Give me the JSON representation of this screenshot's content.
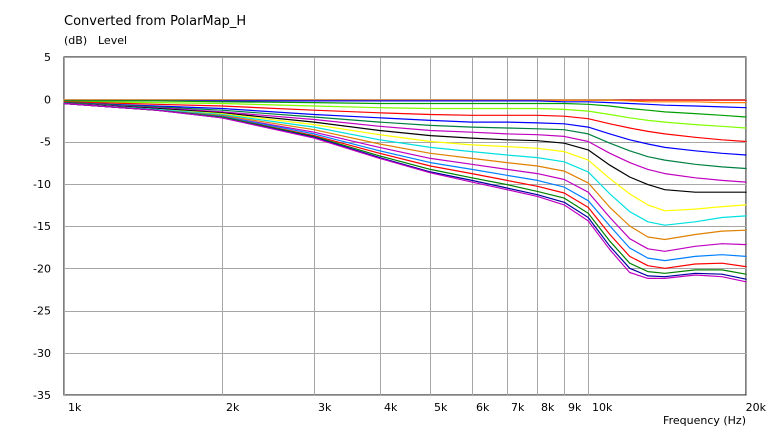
{
  "chart_data": {
    "type": "line",
    "title": "Converted from PolarMap_H",
    "ylabel_unit": "(dB)",
    "ylabel": "Level",
    "xlabel": "Frequency (Hz)",
    "x_scale": "log",
    "xlim": [
      1000,
      20000
    ],
    "ylim": [
      -35,
      5
    ],
    "x_ticks": [
      {
        "value": 1000,
        "label": "1k"
      },
      {
        "value": 2000,
        "label": "2k"
      },
      {
        "value": 3000,
        "label": "3k"
      },
      {
        "value": 4000,
        "label": "4k"
      },
      {
        "value": 5000,
        "label": "5k"
      },
      {
        "value": 6000,
        "label": "6k"
      },
      {
        "value": 7000,
        "label": "7k"
      },
      {
        "value": 8000,
        "label": "8k"
      },
      {
        "value": 9000,
        "label": "9k"
      },
      {
        "value": 10000,
        "label": "10k"
      },
      {
        "value": 20000,
        "label": "20k"
      }
    ],
    "y_ticks": [
      5,
      0,
      -5,
      -10,
      -15,
      -20,
      -25,
      -30,
      -35
    ],
    "grid": true,
    "x": [
      1000,
      1500,
      2000,
      3000,
      4000,
      5000,
      6000,
      7000,
      8000,
      9000,
      10000,
      11000,
      12000,
      13000,
      14000,
      16000,
      18000,
      20000
    ],
    "series": [
      {
        "color": "#ff0000",
        "values": [
          -0.1,
          -0.1,
          -0.1,
          -0.1,
          -0.1,
          -0.1,
          -0.1,
          -0.1,
          -0.1,
          -0.1,
          -0.1,
          -0.1,
          -0.1,
          -0.1,
          -0.1,
          -0.1,
          -0.1,
          -0.1
        ]
      },
      {
        "color": "#ff8000",
        "values": [
          -0.1,
          -0.1,
          -0.1,
          -0.1,
          -0.1,
          -0.1,
          -0.1,
          -0.1,
          -0.1,
          -0.1,
          -0.1,
          -0.1,
          -0.2,
          -0.3,
          -0.3,
          -0.3,
          -0.4,
          -0.4
        ]
      },
      {
        "color": "#0000ff",
        "values": [
          -0.2,
          -0.2,
          -0.2,
          -0.2,
          -0.2,
          -0.2,
          -0.2,
          -0.2,
          -0.2,
          -0.3,
          -0.3,
          -0.4,
          -0.5,
          -0.6,
          -0.7,
          -0.8,
          -0.9,
          -1.0
        ]
      },
      {
        "color": "#00a000",
        "values": [
          -0.2,
          -0.2,
          -0.3,
          -0.4,
          -0.5,
          -0.5,
          -0.5,
          -0.5,
          -0.5,
          -0.5,
          -0.6,
          -0.8,
          -1.1,
          -1.3,
          -1.5,
          -1.7,
          -1.9,
          -2.1
        ]
      },
      {
        "color": "#80ff00",
        "values": [
          -0.3,
          -0.4,
          -0.5,
          -0.8,
          -1.0,
          -1.1,
          -1.1,
          -1.1,
          -1.1,
          -1.2,
          -1.4,
          -1.8,
          -2.2,
          -2.5,
          -2.7,
          -3.0,
          -3.2,
          -3.4
        ]
      },
      {
        "color": "#ff0000",
        "values": [
          -0.3,
          -0.6,
          -0.8,
          -1.3,
          -1.6,
          -1.8,
          -1.9,
          -1.9,
          -1.9,
          -2.0,
          -2.3,
          -2.9,
          -3.4,
          -3.8,
          -4.1,
          -4.5,
          -4.8,
          -5.0
        ]
      },
      {
        "color": "#0000ff",
        "values": [
          -0.4,
          -0.8,
          -1.1,
          -1.8,
          -2.2,
          -2.5,
          -2.7,
          -2.7,
          -2.8,
          -2.9,
          -3.3,
          -4.1,
          -4.8,
          -5.3,
          -5.7,
          -6.1,
          -6.4,
          -6.6
        ]
      },
      {
        "color": "#008040",
        "values": [
          -0.4,
          -0.9,
          -1.3,
          -2.1,
          -2.7,
          -3.1,
          -3.3,
          -3.4,
          -3.5,
          -3.6,
          -4.1,
          -5.2,
          -6.1,
          -6.8,
          -7.2,
          -7.7,
          -8.0,
          -8.2
        ]
      },
      {
        "color": "#c000c0",
        "values": [
          -0.5,
          -1.0,
          -1.5,
          -2.4,
          -3.2,
          -3.7,
          -3.9,
          -4.1,
          -4.2,
          -4.4,
          -5.0,
          -6.4,
          -7.5,
          -8.3,
          -8.8,
          -9.3,
          -9.6,
          -9.8
        ]
      },
      {
        "color": "#000000",
        "values": [
          -0.5,
          -1.1,
          -1.6,
          -2.7,
          -3.7,
          -4.3,
          -4.6,
          -4.8,
          -4.9,
          -5.2,
          -6.0,
          -7.8,
          -9.2,
          -10.1,
          -10.7,
          -11.0,
          -11.0,
          -11.0
        ]
      },
      {
        "color": "#ffff00",
        "values": [
          -0.5,
          -1.2,
          -1.7,
          -3.0,
          -4.2,
          -5.0,
          -5.4,
          -5.6,
          -5.8,
          -6.2,
          -7.2,
          -9.4,
          -11.2,
          -12.5,
          -13.2,
          -13.0,
          -12.7,
          -12.5
        ]
      },
      {
        "color": "#00e0e0",
        "values": [
          -0.5,
          -1.2,
          -1.8,
          -3.3,
          -4.8,
          -5.7,
          -6.2,
          -6.6,
          -6.9,
          -7.4,
          -8.6,
          -11.2,
          -13.3,
          -14.5,
          -14.9,
          -14.5,
          -14.0,
          -13.8
        ]
      },
      {
        "color": "#e08000",
        "values": [
          -0.5,
          -1.3,
          -1.9,
          -3.6,
          -5.3,
          -6.4,
          -7.0,
          -7.5,
          -7.9,
          -8.5,
          -9.9,
          -12.8,
          -15.0,
          -16.3,
          -16.6,
          -16.0,
          -15.6,
          -15.5
        ]
      },
      {
        "color": "#c000c0",
        "values": [
          -0.5,
          -1.3,
          -2.0,
          -3.9,
          -5.7,
          -7.0,
          -7.7,
          -8.3,
          -8.8,
          -9.5,
          -11.0,
          -14.0,
          -16.5,
          -17.7,
          -18.0,
          -17.4,
          -17.1,
          -17.2
        ]
      },
      {
        "color": "#0080ff",
        "values": [
          -0.5,
          -1.3,
          -2.0,
          -4.1,
          -6.1,
          -7.5,
          -8.3,
          -9.0,
          -9.6,
          -10.4,
          -12.0,
          -15.0,
          -17.6,
          -18.8,
          -19.1,
          -18.6,
          -18.4,
          -18.6
        ]
      },
      {
        "color": "#ff0000",
        "values": [
          -0.5,
          -1.3,
          -2.1,
          -4.3,
          -6.4,
          -7.9,
          -8.8,
          -9.6,
          -10.3,
          -11.1,
          -12.8,
          -16.0,
          -18.6,
          -19.7,
          -20.0,
          -19.5,
          -19.4,
          -19.8
        ]
      },
      {
        "color": "#008000",
        "values": [
          -0.5,
          -1.3,
          -2.1,
          -4.4,
          -6.7,
          -8.3,
          -9.3,
          -10.1,
          -10.9,
          -11.7,
          -13.5,
          -16.8,
          -19.4,
          -20.4,
          -20.6,
          -20.2,
          -20.2,
          -20.7
        ]
      },
      {
        "color": "#0000a0",
        "values": [
          -0.5,
          -1.3,
          -2.2,
          -4.5,
          -6.9,
          -8.6,
          -9.6,
          -10.5,
          -11.3,
          -12.2,
          -14.0,
          -17.4,
          -20.0,
          -20.9,
          -21.0,
          -20.6,
          -20.7,
          -21.3
        ]
      },
      {
        "color": "#c000c0",
        "values": [
          -0.5,
          -1.3,
          -2.2,
          -4.6,
          -7.0,
          -8.7,
          -9.8,
          -10.7,
          -11.5,
          -12.5,
          -14.4,
          -17.8,
          -20.5,
          -21.2,
          -21.2,
          -20.8,
          -21.0,
          -21.6
        ]
      }
    ]
  }
}
